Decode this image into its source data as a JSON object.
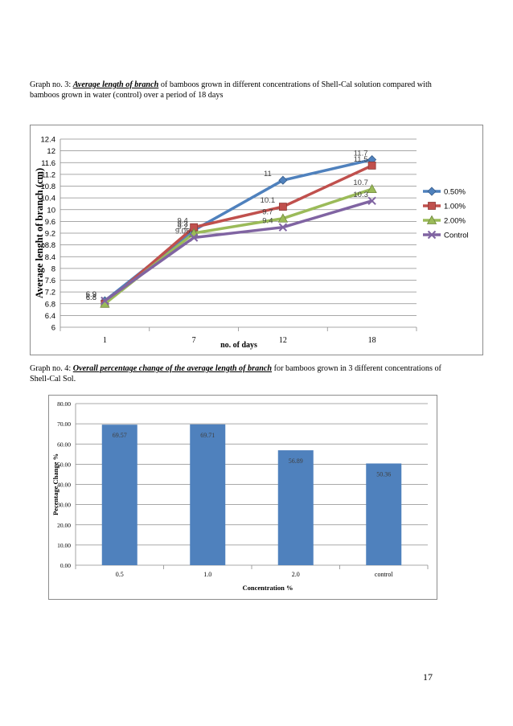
{
  "graph3": {
    "caption_prefix": "Graph no. 3: ",
    "caption_bold": "Average length of branch",
    "caption_rest": " of bamboos grown in different concentrations of Shell-Cal solution compared with bamboos grown in water (control) over a period of 18 days"
  },
  "graph4": {
    "caption_prefix": "Graph no. 4: ",
    "caption_bold": "Overall percentage change of the average length of branch",
    "caption_rest": " for bamboos grown in 3 different concentrations of Shell-Cal Sol."
  },
  "page_number": "17",
  "chart_data": [
    {
      "type": "line",
      "title": "",
      "xlabel": "no. of days",
      "ylabel": "Average lenght of branch (cm)",
      "categories": [
        "1",
        "7",
        "12",
        "18"
      ],
      "ylim": [
        6,
        12.4
      ],
      "yticks": [
        "6",
        "6.4",
        "6.8",
        "7.2",
        "7.6",
        "8",
        "8.4",
        "8.8",
        "9.2",
        "9.6",
        "10",
        "10.4",
        "10.8",
        "11.2",
        "11.6",
        "12",
        "12.4"
      ],
      "grid": true,
      "legend_position": "right",
      "series": [
        {
          "name": "0.50%",
          "values": [
            6.9,
            9.3,
            11.0,
            11.7
          ],
          "labels": [
            "6.9",
            "9.3",
            "11",
            "11.7"
          ],
          "color": "#4f81bd",
          "marker": "diamond"
        },
        {
          "name": "1.00%",
          "values": [
            6.8,
            9.4,
            10.1,
            11.5
          ],
          "labels": [
            "6.8",
            "9.4",
            "10.1",
            "11.5"
          ],
          "color": "#c0504d",
          "marker": "square"
        },
        {
          "name": "2.00%",
          "values": [
            6.8,
            9.2,
            9.7,
            10.7
          ],
          "labels": [
            "6.8",
            "9.2",
            "9.7",
            "10.7"
          ],
          "color": "#9bbb59",
          "marker": "triangle"
        },
        {
          "name": "Control",
          "values": [
            6.9,
            9.05,
            9.4,
            10.3
          ],
          "labels": [
            "6.9",
            "9.05",
            "9.4",
            "10.3"
          ],
          "color": "#8064a2",
          "marker": "x"
        }
      ]
    },
    {
      "type": "bar",
      "title": "",
      "xlabel": "Concentration %",
      "ylabel": "Pecentage Change %",
      "categories": [
        "0.5",
        "1.0",
        "2.0",
        "control"
      ],
      "values": [
        69.57,
        69.71,
        56.89,
        50.36
      ],
      "labels": [
        "69.57",
        "69.71",
        "56.89",
        "50.36"
      ],
      "ylim": [
        0,
        80
      ],
      "yticks": [
        "0.00",
        "10.00",
        "20.00",
        "30.00",
        "40.00",
        "50.00",
        "60.00",
        "70.00",
        "80.00"
      ],
      "grid": true,
      "bar_color": "#4f81bd"
    }
  ]
}
